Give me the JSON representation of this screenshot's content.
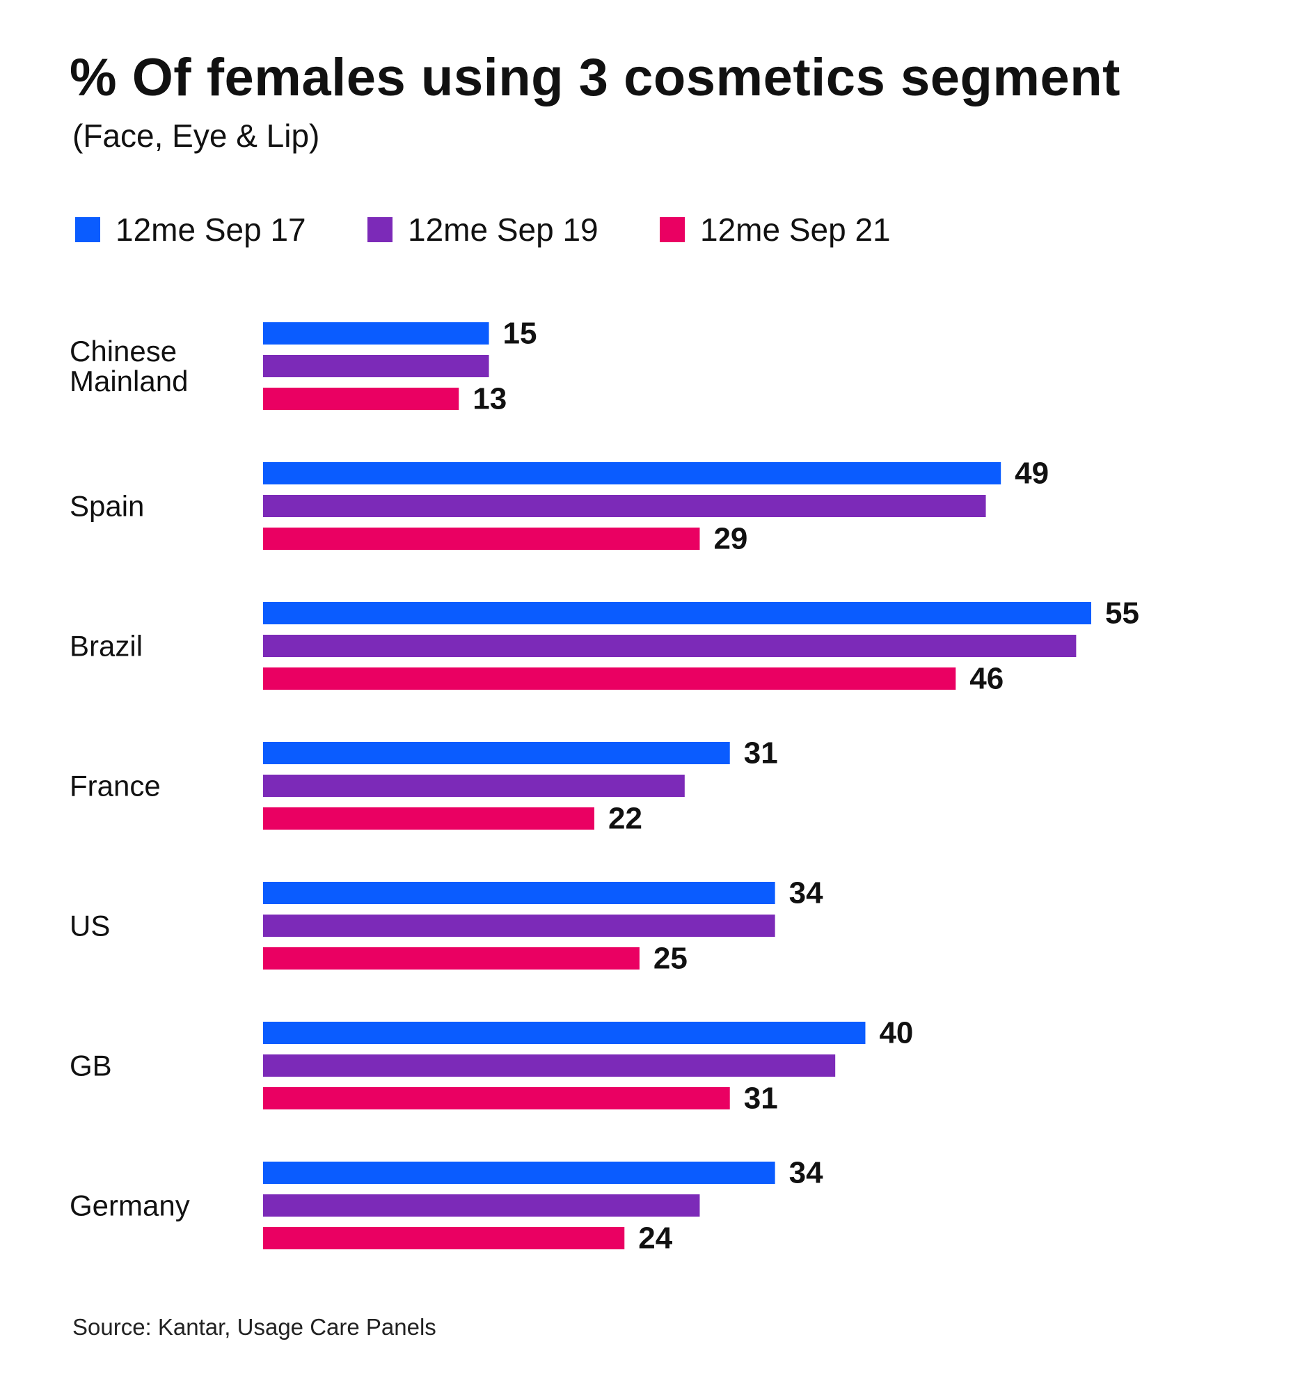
{
  "header": {
    "title": "% Of females using 3 cosmetics segment",
    "subtitle": "(Face, Eye & Lip)"
  },
  "source": "Source: Kantar, Usage Care Panels",
  "chart_data": {
    "type": "bar",
    "orientation": "horizontal",
    "title": "% Of females using 3 cosmetics segment",
    "subtitle": "(Face, Eye & Lip)",
    "xlim": [
      0,
      55
    ],
    "grid": false,
    "legend_position": "top-left",
    "categories": [
      "Chinese Mainland",
      "Spain",
      "Brazil",
      "France",
      "US",
      "GB",
      "Germany"
    ],
    "series": [
      {
        "name": "12me Sep 17",
        "color": "#0a5cff",
        "values": [
          15,
          49,
          55,
          31,
          34,
          40,
          34
        ],
        "labels_shown": [
          true,
          true,
          true,
          true,
          true,
          true,
          true
        ]
      },
      {
        "name": "12me Sep 19",
        "color": "#7c2ab8",
        "values": [
          15,
          48,
          54,
          28,
          34,
          38,
          29
        ],
        "labels_shown": [
          false,
          false,
          false,
          false,
          false,
          false,
          false
        ]
      },
      {
        "name": "12me Sep 21",
        "color": "#ea0062",
        "values": [
          13,
          29,
          46,
          22,
          25,
          31,
          24
        ],
        "labels_shown": [
          true,
          true,
          true,
          true,
          true,
          true,
          true
        ]
      }
    ]
  }
}
